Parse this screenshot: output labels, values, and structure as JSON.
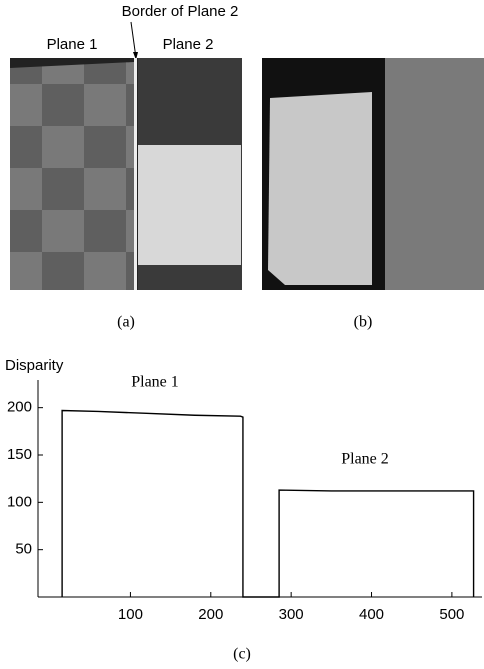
{
  "figure": {
    "border_label": "Border of Plane 2",
    "plane1_label": "Plane 1",
    "plane2_label": "Plane 2",
    "caption_a": "(a)",
    "caption_b": "(b)",
    "caption_c": "(c)"
  },
  "chart_data": {
    "type": "line",
    "y_label": "Disparity",
    "annotations": [
      "Plane 1",
      "Plane 2"
    ],
    "x": [
      15,
      15,
      60,
      120,
      180,
      237,
      240,
      240,
      285,
      285,
      350,
      450,
      527,
      527
    ],
    "series": [
      {
        "color": "#000000",
        "values": [
          0,
          197,
          196,
          194,
          192,
          191,
          190,
          0,
          0,
          113,
          112,
          112,
          112,
          0
        ]
      }
    ],
    "xlim": [
      -15,
      530
    ],
    "xticks": [
      100,
      200,
      300,
      400,
      500
    ],
    "ylim": [
      0,
      225
    ],
    "yticks": [
      50,
      100,
      150,
      200
    ]
  }
}
